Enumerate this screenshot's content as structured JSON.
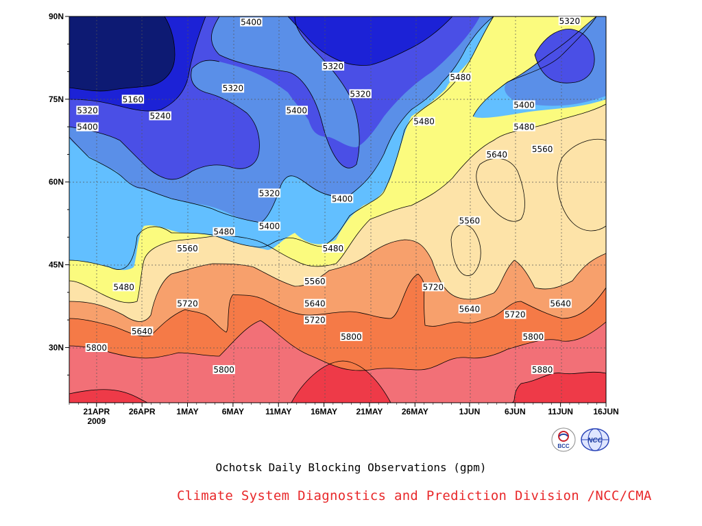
{
  "chart_data": {
    "type": "heatmap",
    "title": "Ochotsk Daily Blocking Observations (gpm)",
    "xlabel": "",
    "ylabel": "",
    "x_ticks": [
      "21APR",
      "26APR",
      "1MAY",
      "6MAY",
      "11MAY",
      "16MAY",
      "21MAY",
      "26MAY",
      "1JUN",
      "6JUN",
      "11JUN",
      "16JUN"
    ],
    "x_year_label": "2009",
    "y_ticks": [
      "90N",
      "75N",
      "60N",
      "45N",
      "30N"
    ],
    "x_range": [
      "2009-04-18",
      "2009-06-16"
    ],
    "y_range": [
      "20N",
      "90N"
    ],
    "grid": true,
    "contour_levels": [
      5160,
      5240,
      5320,
      5400,
      5480,
      5560,
      5640,
      5720,
      5800,
      5880
    ],
    "level_colors": [
      "#0d1a73",
      "#1c22d6",
      "#4a4fe6",
      "#5a8fe8",
      "#62bfff",
      "#fbfb7e",
      "#fde3a8",
      "#f7a06c",
      "#f57a47",
      "#f27077",
      "#ee3a48"
    ],
    "contour_labels": [
      {
        "text": "5400",
        "date": "2009-05-08",
        "lat": 89
      },
      {
        "text": "5320",
        "date": "2009-06-12",
        "lat": 90
      },
      {
        "text": "5160",
        "date": "2009-04-25",
        "lat": 75
      },
      {
        "text": "5320",
        "date": "2009-04-20",
        "lat": 73
      },
      {
        "text": "5240",
        "date": "2009-04-28",
        "lat": 72
      },
      {
        "text": "5400",
        "date": "2009-04-20",
        "lat": 70
      },
      {
        "text": "5320",
        "date": "2009-05-06",
        "lat": 77
      },
      {
        "text": "5400",
        "date": "2009-05-13",
        "lat": 73
      },
      {
        "text": "5320",
        "date": "2009-05-17",
        "lat": 81
      },
      {
        "text": "5320",
        "date": "2009-05-20",
        "lat": 76
      },
      {
        "text": "5480",
        "date": "2009-05-31",
        "lat": 79
      },
      {
        "text": "5400",
        "date": "2009-06-07",
        "lat": 74
      },
      {
        "text": "5480",
        "date": "2009-06-07",
        "lat": 70
      },
      {
        "text": "5480",
        "date": "2009-05-27",
        "lat": 71
      },
      {
        "text": "5640",
        "date": "2009-06-04",
        "lat": 65
      },
      {
        "text": "5560",
        "date": "2009-06-09",
        "lat": 66
      },
      {
        "text": "5320",
        "date": "2009-05-10",
        "lat": 58
      },
      {
        "text": "5400",
        "date": "2009-05-18",
        "lat": 57
      },
      {
        "text": "5400",
        "date": "2009-05-10",
        "lat": 52
      },
      {
        "text": "5480",
        "date": "2009-05-05",
        "lat": 51
      },
      {
        "text": "5560",
        "date": "2009-05-01",
        "lat": 48
      },
      {
        "text": "5480",
        "date": "2009-04-24",
        "lat": 41
      },
      {
        "text": "5480",
        "date": "2009-05-17",
        "lat": 48
      },
      {
        "text": "5560",
        "date": "2009-06-01",
        "lat": 53
      },
      {
        "text": "5560",
        "date": "2009-05-15",
        "lat": 42
      },
      {
        "text": "5640",
        "date": "2009-05-15",
        "lat": 38
      },
      {
        "text": "5720",
        "date": "2009-05-01",
        "lat": 38
      },
      {
        "text": "5720",
        "date": "2009-05-28",
        "lat": 41
      },
      {
        "text": "5640",
        "date": "2009-06-01",
        "lat": 37
      },
      {
        "text": "5720",
        "date": "2009-06-06",
        "lat": 36
      },
      {
        "text": "5640",
        "date": "2009-06-11",
        "lat": 38
      },
      {
        "text": "5720",
        "date": "2009-05-15",
        "lat": 35
      },
      {
        "text": "5640",
        "date": "2009-04-26",
        "lat": 33
      },
      {
        "text": "5800",
        "date": "2009-05-19",
        "lat": 32
      },
      {
        "text": "5800",
        "date": "2009-06-08",
        "lat": 32
      },
      {
        "text": "5800",
        "date": "2009-04-21",
        "lat": 30
      },
      {
        "text": "5800",
        "date": "2009-05-05",
        "lat": 26
      },
      {
        "text": "5880",
        "date": "2009-06-09",
        "lat": 26
      }
    ]
  },
  "page": {
    "subtitle": "Ochotsk Daily Blocking Observations (gpm)",
    "credit": "Climate System Diagnostics and Prediction Division /NCC/CMA",
    "logo_bcc_text": "BCC",
    "logo_ncc_text": "NCC"
  }
}
